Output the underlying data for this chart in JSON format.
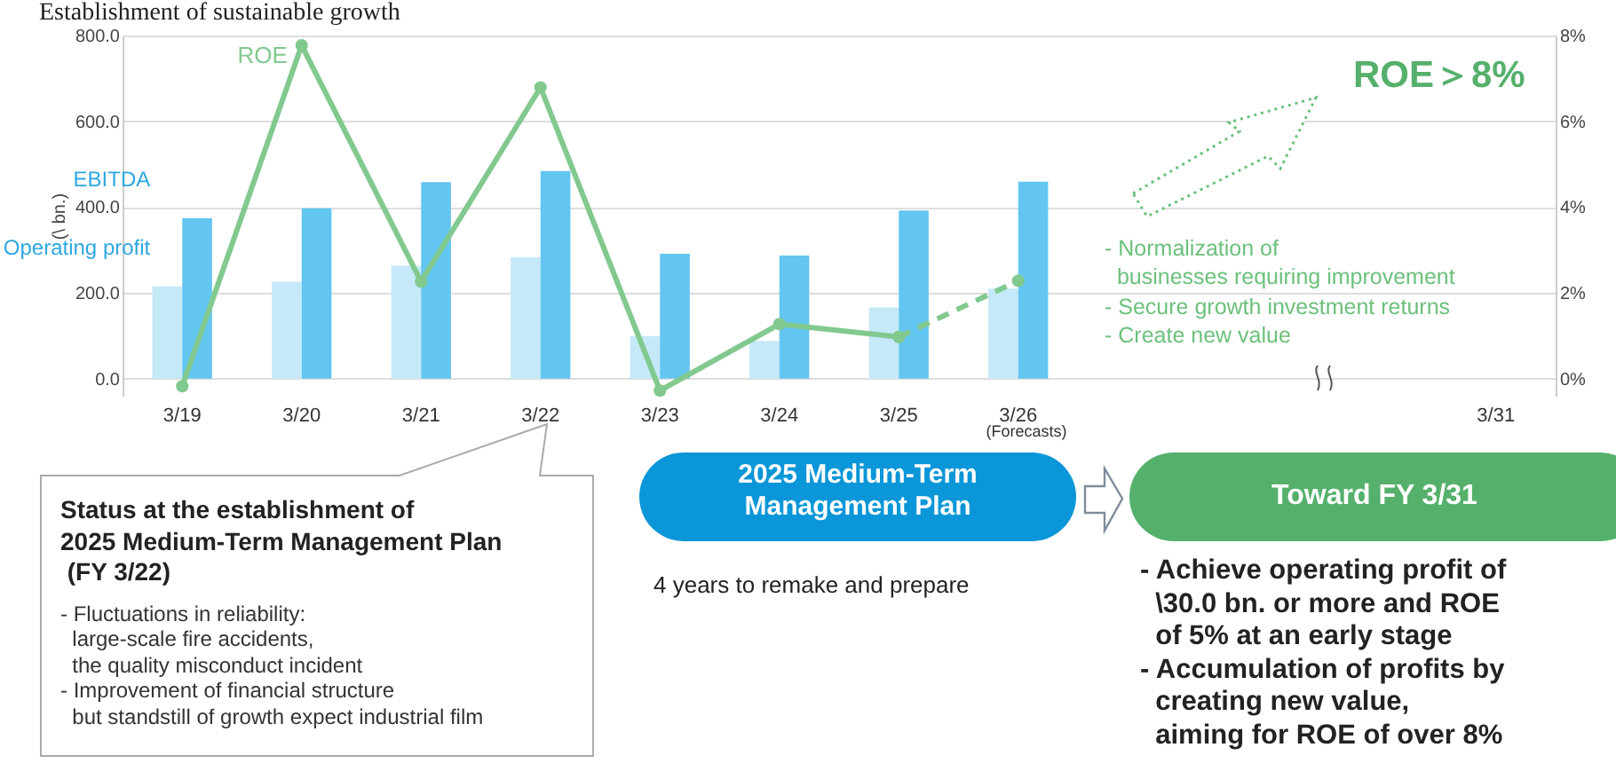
{
  "chart_data": {
    "type": "bar",
    "title": "Establishment of sustainable growth",
    "ylabel": "(\\ bn.)",
    "categories": [
      "3/19",
      "3/20",
      "3/21",
      "3/22",
      "3/23",
      "3/24",
      "3/25",
      "3/26",
      null,
      null,
      null,
      "3/31"
    ],
    "series": [
      {
        "name": "Operating profit",
        "color": "#c5e9f9",
        "values": [
          215,
          226,
          263,
          283,
          99,
          88,
          166,
          210,
          null,
          null,
          null,
          null
        ]
      },
      {
        "name": "EBITDA",
        "color": "#63c6f0",
        "values": [
          374,
          397,
          458,
          484,
          291,
          287,
          392,
          459,
          null,
          null,
          null,
          null
        ]
      },
      {
        "name": "ROE",
        "type": "line",
        "axis": "y2",
        "color": "#82c98f",
        "line_style": "solid",
        "values": [
          -0.18,
          7.77,
          2.26,
          6.79,
          -0.28,
          1.27,
          0.97,
          null,
          null,
          null,
          null,
          null
        ]
      },
      {
        "type": "line",
        "axis": "y2",
        "color": "#82c98f",
        "line_style": "dashed",
        "values": [
          null,
          null,
          null,
          null,
          null,
          null,
          0.97,
          2.28,
          null,
          null,
          null,
          null
        ]
      }
    ],
    "ylim": [
      -40,
      800
    ],
    "yticks": [
      {
        "value": 0,
        "label": "0.0"
      },
      {
        "value": 200,
        "label": "200.0"
      },
      {
        "value": 400,
        "label": "400.0"
      },
      {
        "value": 600,
        "label": "600.0"
      },
      {
        "value": 800,
        "label": "800.0"
      }
    ],
    "y2lim": [
      -0.4,
      8
    ],
    "y2ticks": [
      {
        "value": 0,
        "label": "0%"
      },
      {
        "value": 2,
        "label": "2%"
      },
      {
        "value": 4,
        "label": "4%"
      },
      {
        "value": 6,
        "label": "6%"
      },
      {
        "value": 8,
        "label": "8%"
      }
    ],
    "grid": "y",
    "legend": false,
    "marker": "circle",
    "annotations": [
      "ROE＞8%",
      "- Normalization of\n  businesses requiring improvement\n- Secure growth investment returns\n- Create new value",
      "(Forecasts)",
      "Status at the establishment of\n2025 Medium-Term Management Plan\n (FY 3/22)",
      "- Fluctuations in reliability:\n  large-scale fire accidents,\n  the quality misconduct incident\n- Improvement of financial structure\n  but standstill of growth expect industrial film",
      "2025 Medium-Term\nManagement Plan",
      "4 years to remake and prepare",
      "Toward FY 3/31",
      "- Achieve operating profit of\n  \\30.0 bn. or more and ROE\n  of 5% at an early stage\n- Accumulation of profits by\n  creating new value,\n  aiming for ROE of over 8%"
    ]
  }
}
